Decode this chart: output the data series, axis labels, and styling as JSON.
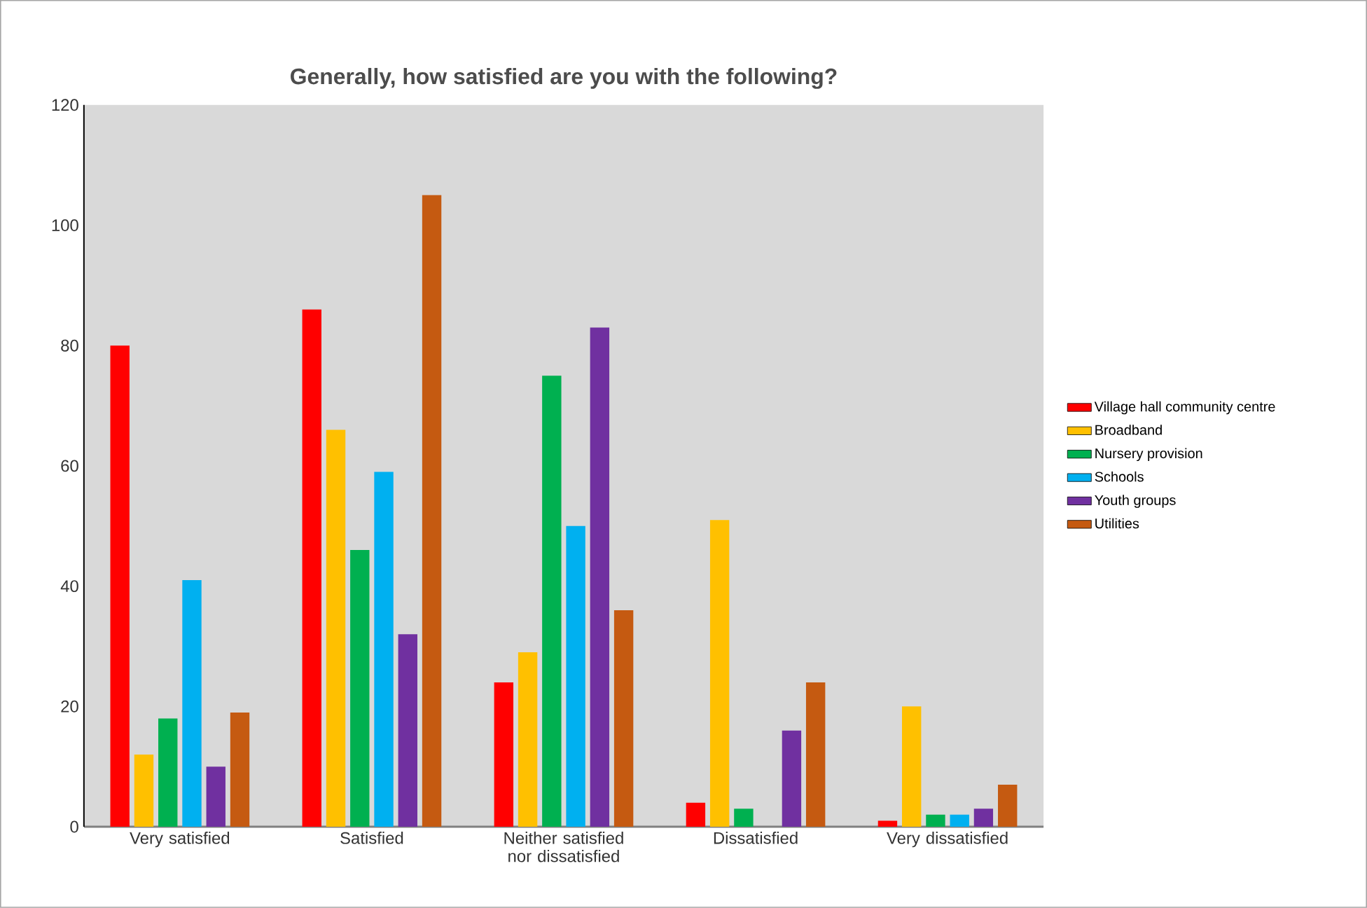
{
  "chart_data": {
    "type": "bar",
    "title": "Generally, how satisfied are you with the following?",
    "categories": [
      "Very satisfied",
      "Satisfied",
      "Neither satisfied nor dissatisfied",
      "Dissatisfied",
      "Very dissatisfied"
    ],
    "series": [
      {
        "name": "Village hall community centre",
        "color": "#ff0000",
        "values": [
          80,
          86,
          24,
          4,
          1
        ]
      },
      {
        "name": "Broadband",
        "color": "#ffc000",
        "values": [
          12,
          66,
          29,
          51,
          20
        ]
      },
      {
        "name": "Nursery provision",
        "color": "#00b050",
        "values": [
          18,
          46,
          75,
          3,
          2
        ]
      },
      {
        "name": "Schools",
        "color": "#00b0f0",
        "values": [
          41,
          59,
          50,
          null,
          2
        ]
      },
      {
        "name": "Youth groups",
        "color": "#7030a0",
        "values": [
          10,
          32,
          83,
          16,
          3
        ]
      },
      {
        "name": "Utilities",
        "color": "#c55a11",
        "values": [
          19,
          105,
          36,
          24,
          7
        ]
      }
    ],
    "ylim": [
      0,
      120
    ],
    "yticks": [
      0,
      20,
      40,
      60,
      80,
      100,
      120
    ],
    "grid": false,
    "legend": "right"
  }
}
